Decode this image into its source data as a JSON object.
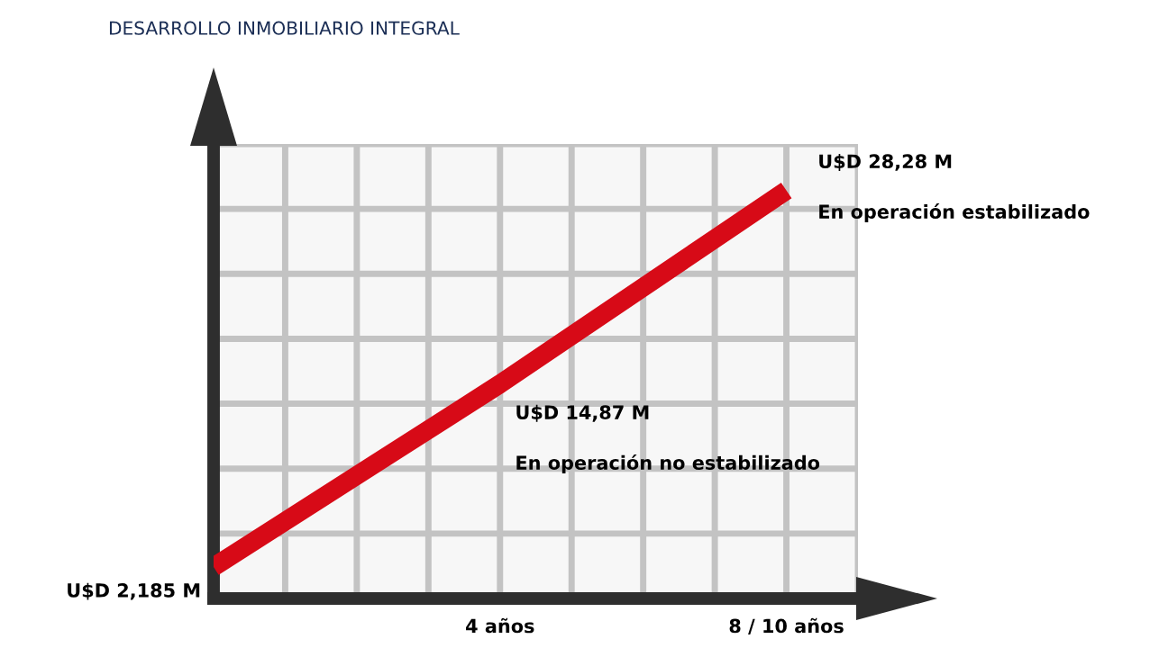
{
  "chart_data": {
    "type": "line",
    "title": "DESARROLLO INMOBILIARIO INTEGRAL",
    "categories": [
      null,
      "4 años",
      "8 / 10 años"
    ],
    "series": [
      {
        "color": "#d70a17",
        "values": [
          2.185,
          14.87,
          28.28
        ],
        "value_labels": [
          "U$D 2,185 M",
          "U$D 14,87 M",
          "U$D 28,28 M"
        ]
      }
    ],
    "ylim": [
      0,
      31.5
    ],
    "yticks": [
      {
        "value": 0,
        "label": null
      },
      {
        "value": 4.5,
        "label": null
      },
      {
        "value": 9,
        "label": null
      },
      {
        "value": 13.5,
        "label": null
      },
      {
        "value": 18,
        "label": null
      },
      {
        "value": 22.5,
        "label": null
      },
      {
        "value": 27,
        "label": null
      },
      {
        "value": 31.5,
        "label": null
      }
    ],
    "grid": true,
    "tick_labels": "x",
    "annotations": [
      "En operación no estabilizado",
      "En operación estabilizado"
    ]
  }
}
